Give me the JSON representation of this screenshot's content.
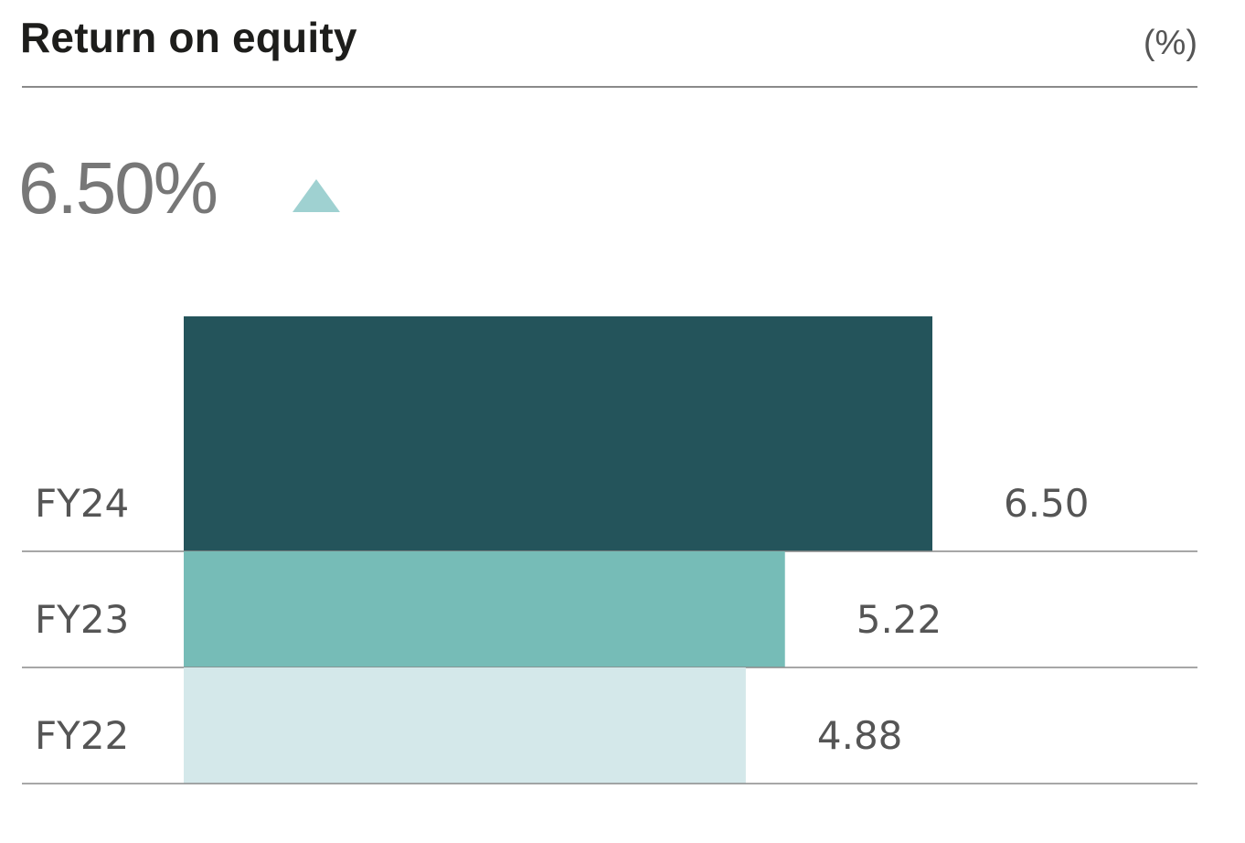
{
  "header": {
    "title": "Return on equity",
    "unit": "(%)"
  },
  "headline": {
    "value": "6.50%",
    "trend": "up"
  },
  "colors": {
    "FY24": "#24545b",
    "FY23": "#76bcb7",
    "FY22": "#d4e8ea",
    "trend": "#9fd1d1"
  },
  "chart_data": {
    "type": "bar",
    "orientation": "horizontal",
    "categories": [
      "FY24",
      "FY23",
      "FY22"
    ],
    "values": [
      6.5,
      5.22,
      4.88
    ],
    "value_labels": [
      "6.50",
      "5.22",
      "4.88"
    ],
    "title": "Return on equity",
    "ylabel": "(%)"
  }
}
